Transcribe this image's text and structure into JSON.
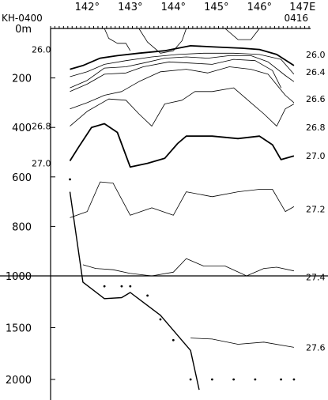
{
  "chart_data": {
    "type": "line",
    "stations": {
      "left": "KH-0400",
      "right": "0416"
    },
    "x_axis": {
      "unit": "longitude_degE",
      "range": [
        141.15,
        147.15
      ],
      "ticks": [
        142,
        143,
        144,
        145,
        146,
        147
      ],
      "tick_labels": [
        "142°",
        "143°",
        "144°",
        "145°",
        "146°",
        "147E"
      ]
    },
    "y_axis": {
      "unit": "depth_m",
      "upper": {
        "range": [
          0,
          1000
        ],
        "ticks": [
          0,
          200,
          400,
          600,
          800,
          1000
        ],
        "tick_labels": [
          "0m",
          "200",
          "400",
          "600",
          "800",
          "1000"
        ]
      },
      "lower": {
        "range": [
          1000,
          2100
        ],
        "ticks": [
          1500,
          2000
        ],
        "tick_labels": [
          "1500",
          "2000"
        ]
      }
    },
    "bottom_profile": {
      "lon": [
        141.6,
        141.9,
        142.4,
        142.8,
        143.0,
        143.7,
        144.4,
        144.6
      ],
      "depth": [
        660,
        1060,
        1220,
        1210,
        1160,
        1380,
        1720,
        2100
      ]
    },
    "sample_points": {
      "lon": [
        141.6,
        142.4,
        142.8,
        143.0,
        143.4,
        143.7,
        144.0,
        144.4,
        144.9,
        145.4,
        145.9,
        146.5,
        146.8
      ],
      "depth": [
        610,
        1100,
        1100,
        1100,
        1190,
        1420,
        1620,
        2000,
        2000,
        2000,
        2000,
        2000,
        2000
      ]
    },
    "contours": [
      {
        "label": "26.0",
        "bold": true,
        "segments": [
          {
            "lon": [
              141.6,
              141.9,
              142.3,
              142.7,
              143.2,
              143.8,
              144.4,
              145.0,
              145.6,
              146.0,
              146.4,
              146.8
            ],
            "depth": [
              165,
              150,
              120,
              110,
              100,
              90,
              70,
              75,
              80,
              85,
              105,
              150
            ]
          }
        ]
      },
      {
        "label": "",
        "bold": false,
        "segments": [
          {
            "lon": [
              141.6,
              142.0,
              142.4,
              142.9,
              143.5,
              144.1,
              144.7,
              145.4,
              146.0,
              146.5,
              146.8
            ],
            "depth": [
              195,
              175,
              145,
              130,
              115,
              105,
              100,
              100,
              105,
              125,
              185
            ]
          }
        ]
      },
      {
        "label": "26.4",
        "bold": false,
        "segments": [
          {
            "lon": [
              141.6,
              142.0,
              142.4,
              142.9,
              143.3,
              143.8,
              144.3,
              144.8,
              145.3,
              145.8,
              146.2,
              146.6,
              146.8
            ],
            "depth": [
              240,
              210,
              160,
              155,
              140,
              120,
              115,
              120,
              110,
              110,
              135,
              190,
              215
            ]
          }
        ]
      },
      {
        "label": "",
        "bold": false,
        "segments": [
          {
            "lon": [
              141.6,
              142.0,
              142.4,
              142.9,
              143.3,
              143.9,
              144.4,
              144.9,
              145.4,
              145.9,
              146.3,
              146.5
            ],
            "depth": [
              255,
              225,
              185,
              180,
              155,
              135,
              140,
              145,
              125,
              130,
              170,
              240
            ]
          }
        ]
      },
      {
        "label": "26.6",
        "bold": false,
        "segments": [
          {
            "lon": [
              141.6,
              142.0,
              142.4,
              142.8,
              143.2,
              143.7,
              144.3,
              144.8,
              145.3,
              145.8,
              146.2,
              146.6,
              146.8
            ],
            "depth": [
              325,
              300,
              270,
              255,
              215,
              175,
              165,
              180,
              155,
              165,
              185,
              270,
              300
            ]
          }
        ]
      },
      {
        "label": "26.8",
        "bold": false,
        "segments": [
          {
            "lon": [
              141.6,
              142.0,
              142.5,
              142.9,
              143.2,
              143.5,
              143.8,
              144.2,
              144.5,
              144.9,
              145.4,
              145.8,
              146.1,
              146.4,
              146.6,
              146.8
            ],
            "depth": [
              395,
              335,
              285,
              290,
              345,
              395,
              305,
              290,
              255,
              255,
              240,
              300,
              345,
              395,
              325,
              305
            ]
          }
        ]
      },
      {
        "label": "27.0",
        "bold": true,
        "segments": [
          {
            "lon": [
              141.6,
              141.8,
              142.1,
              142.4,
              142.7,
              143.0,
              143.4,
              143.8,
              144.1,
              144.3,
              144.9,
              145.5,
              146.0,
              146.3,
              146.5,
              146.8
            ],
            "depth": [
              535,
              480,
              400,
              385,
              420,
              560,
              545,
              525,
              465,
              435,
              435,
              445,
              435,
              470,
              530,
              515
            ]
          }
        ]
      },
      {
        "label": "27.2",
        "bold": false,
        "segments": [
          {
            "lon": [
              141.6,
              142.0,
              142.3,
              142.6,
              143.0,
              143.5,
              144.0,
              144.3,
              144.9,
              145.5,
              146.0,
              146.3,
              146.6,
              146.8
            ],
            "depth": [
              765,
              740,
              620,
              625,
              755,
              725,
              755,
              660,
              680,
              660,
              650,
              650,
              740,
              720
            ]
          }
        ]
      },
      {
        "label": "27.4",
        "bold": false,
        "segments": [
          {
            "lon": [
              141.9,
              142.2,
              142.6,
              143.0,
              143.5,
              144.0,
              144.3,
              144.7,
              145.2,
              145.7,
              146.1,
              146.4,
              146.8
            ],
            "depth": [
              955,
              970,
              975,
              990,
              1000,
              985,
              930,
              960,
              960,
              1000,
              970,
              965,
              980
            ]
          }
        ]
      },
      {
        "label": "27.6",
        "bold": false,
        "segments": [
          {
            "lon": [
              144.4,
              144.9,
              145.5,
              146.1,
              146.8
            ],
            "depth": [
              1600,
              1610,
              1660,
              1640,
              1690
            ]
          }
        ]
      },
      {
        "label": "",
        "bold": false,
        "segments": [
          {
            "lon": [
              142.4,
              142.5,
              142.7,
              142.9,
              143.0
            ],
            "depth": [
              0,
              40,
              60,
              60,
              90
            ]
          },
          {
            "lon": [
              143.2,
              143.4,
              143.7,
              144.0,
              144.2,
              144.3
            ],
            "depth": [
              0,
              55,
              100,
              90,
              50,
              0
            ]
          },
          {
            "lon": [
              145.2,
              145.5,
              145.8,
              146.0
            ],
            "depth": [
              0,
              45,
              45,
              0
            ]
          }
        ]
      }
    ],
    "contour_labels": [
      {
        "text": "26.0",
        "side": "left",
        "depth": 85
      },
      {
        "text": "26.8",
        "side": "left",
        "depth": 395
      },
      {
        "text": "27.0",
        "side": "left",
        "depth": 545
      },
      {
        "text": "26.0",
        "side": "right",
        "depth": 105
      },
      {
        "text": "26.4",
        "side": "right",
        "depth": 175
      },
      {
        "text": "26.6",
        "side": "right",
        "depth": 285
      },
      {
        "text": "26.8",
        "side": "right",
        "depth": 400
      },
      {
        "text": "27.0",
        "side": "right",
        "depth": 515
      },
      {
        "text": "27.2",
        "side": "right",
        "depth": 730
      },
      {
        "text": "27.4",
        "side": "right",
        "depth": 1010
      },
      {
        "text": "27.6",
        "side": "right",
        "depth": 1690
      }
    ]
  }
}
